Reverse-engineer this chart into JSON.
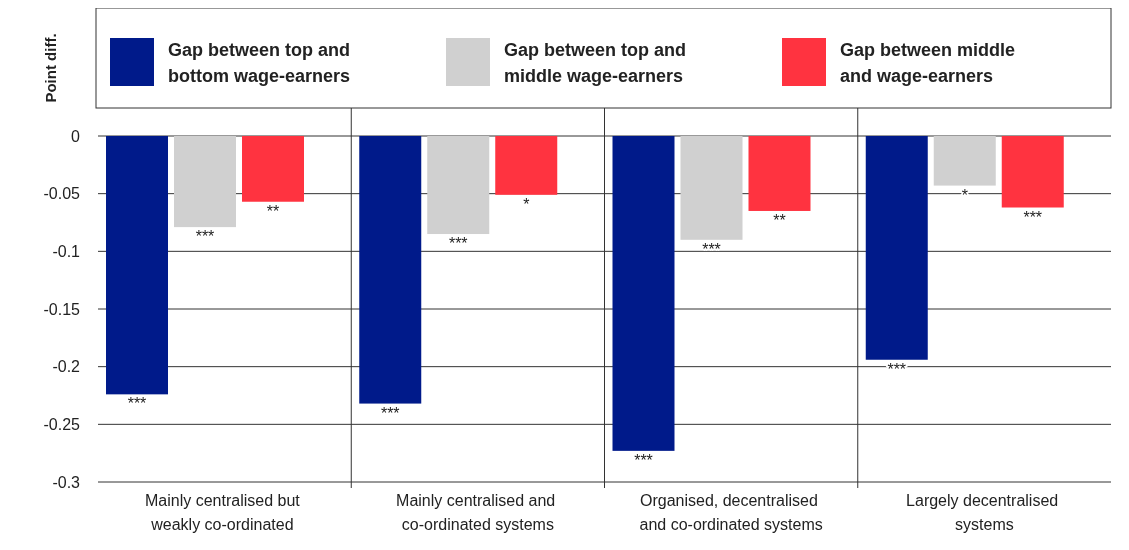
{
  "chart_data": {
    "type": "bar",
    "ylabel": "Point diff.",
    "categories": [
      "Mainly centralised but weakly co-ordinated systems",
      "Mainly centralised and co-ordinated systems",
      "Organised, decentralised and co-ordinated systems",
      "Largely decentralised systems"
    ],
    "series": [
      {
        "name": "Gap between top and bottom wage-earners",
        "color": "#001a8a",
        "values": [
          -0.224,
          -0.232,
          -0.273,
          -0.194
        ],
        "value_labels": [
          "***",
          "***",
          "***",
          "***"
        ]
      },
      {
        "name": "Gap between top and middle wage-earners",
        "color": "#d0d0d0",
        "values": [
          -0.079,
          -0.085,
          -0.09,
          -0.043
        ],
        "value_labels": [
          "***",
          "***",
          "***",
          "*"
        ]
      },
      {
        "name": "Gap between middle and wage-earners",
        "color": "#ff3340",
        "values": [
          -0.057,
          -0.051,
          -0.065,
          -0.062
        ],
        "value_labels": [
          "**",
          "*",
          "**",
          "***"
        ]
      }
    ],
    "ylim": [
      -0.3,
      0
    ],
    "yticks": [
      0,
      -0.05,
      -0.1,
      -0.15,
      -0.2,
      -0.25,
      -0.3
    ],
    "grid": "y",
    "legend": "top"
  }
}
